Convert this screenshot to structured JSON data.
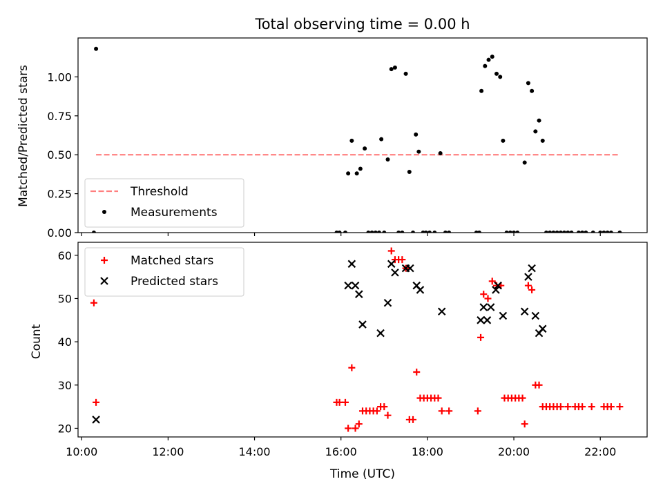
{
  "chart_data": [
    {
      "type": "scatter",
      "title": "Total observing time = 0.00 h",
      "xlabel": "",
      "ylabel": "Matched/Predicted stars",
      "xlim": [
        "09:55",
        "23:05"
      ],
      "ylim": [
        0,
        1.25
      ],
      "yticks": [
        0.0,
        0.25,
        0.5,
        0.75,
        1.0
      ],
      "ytick_labels": [
        "0.00",
        "0.25",
        "0.50",
        "0.75",
        "1.00"
      ],
      "legend_position": "lower-left",
      "grid": false,
      "series": [
        {
          "name": "Threshold",
          "kind": "line",
          "style": "dashed",
          "color": "#ff7f7f",
          "points": [
            [
              "10:20",
              0.5
            ],
            [
              "22:27",
              0.5
            ]
          ]
        },
        {
          "name": "Measurements",
          "kind": "scatter",
          "marker": "dot",
          "color": "#000000",
          "points": [
            [
              "10:17",
              0.0
            ],
            [
              "10:20",
              1.18
            ],
            [
              "15:54",
              0.0
            ],
            [
              "15:58",
              0.0
            ],
            [
              "16:06",
              0.0
            ],
            [
              "16:10",
              0.38
            ],
            [
              "16:15",
              0.59
            ],
            [
              "16:22",
              0.38
            ],
            [
              "16:27",
              0.41
            ],
            [
              "16:33",
              0.54
            ],
            [
              "16:38",
              0.0
            ],
            [
              "16:43",
              0.0
            ],
            [
              "16:48",
              0.0
            ],
            [
              "16:53",
              0.0
            ],
            [
              "16:56",
              0.6
            ],
            [
              "17:00",
              0.0
            ],
            [
              "17:05",
              0.47
            ],
            [
              "17:10",
              1.05
            ],
            [
              "17:15",
              1.06
            ],
            [
              "17:20",
              0.0
            ],
            [
              "17:25",
              0.0
            ],
            [
              "17:30",
              1.02
            ],
            [
              "17:35",
              0.39
            ],
            [
              "17:40",
              0.0
            ],
            [
              "17:44",
              0.63
            ],
            [
              "17:48",
              0.52
            ],
            [
              "17:54",
              0.0
            ],
            [
              "17:58",
              0.0
            ],
            [
              "18:03",
              0.0
            ],
            [
              "18:10",
              0.0
            ],
            [
              "18:18",
              0.51
            ],
            [
              "18:25",
              0.0
            ],
            [
              "18:30",
              0.0
            ],
            [
              "19:08",
              0.0
            ],
            [
              "19:12",
              0.0
            ],
            [
              "19:15",
              0.91
            ],
            [
              "19:20",
              1.07
            ],
            [
              "19:25",
              1.11
            ],
            [
              "19:30",
              1.13
            ],
            [
              "19:36",
              1.02
            ],
            [
              "19:41",
              1.0
            ],
            [
              "19:45",
              0.59
            ],
            [
              "19:50",
              0.0
            ],
            [
              "19:55",
              0.0
            ],
            [
              "20:00",
              0.0
            ],
            [
              "20:05",
              0.0
            ],
            [
              "20:15",
              0.45
            ],
            [
              "20:20",
              0.96
            ],
            [
              "20:25",
              0.91
            ],
            [
              "20:30",
              0.65
            ],
            [
              "20:35",
              0.72
            ],
            [
              "20:40",
              0.59
            ],
            [
              "20:45",
              0.0
            ],
            [
              "20:50",
              0.0
            ],
            [
              "20:55",
              0.0
            ],
            [
              "21:00",
              0.0
            ],
            [
              "21:05",
              0.0
            ],
            [
              "21:10",
              0.0
            ],
            [
              "21:15",
              0.0
            ],
            [
              "21:20",
              0.0
            ],
            [
              "21:30",
              0.0
            ],
            [
              "21:35",
              0.0
            ],
            [
              "21:40",
              0.0
            ],
            [
              "21:50",
              0.0
            ],
            [
              "22:00",
              0.0
            ],
            [
              "22:05",
              0.0
            ],
            [
              "22:10",
              0.0
            ],
            [
              "22:15",
              0.0
            ],
            [
              "22:27",
              0.0
            ]
          ]
        }
      ]
    },
    {
      "type": "scatter",
      "title": "",
      "xlabel": "Time (UTC)",
      "ylabel": "Count",
      "xlim": [
        "09:55",
        "23:05"
      ],
      "ylim": [
        18,
        63
      ],
      "yticks": [
        20,
        30,
        40,
        50,
        60
      ],
      "ytick_labels": [
        "20",
        "30",
        "40",
        "50",
        "60"
      ],
      "xticks": [
        "10:00",
        "12:00",
        "14:00",
        "16:00",
        "18:00",
        "20:00",
        "22:00"
      ],
      "xtick_labels": [
        "10:00",
        "12:00",
        "14:00",
        "16:00",
        "18:00",
        "20:00",
        "22:00"
      ],
      "legend_position": "upper-left",
      "grid": false,
      "series": [
        {
          "name": "Matched stars",
          "kind": "scatter",
          "marker": "plus",
          "color": "#ff0000",
          "points": [
            [
              "10:17",
              49
            ],
            [
              "10:20",
              26
            ],
            [
              "15:54",
              26
            ],
            [
              "15:58",
              26
            ],
            [
              "16:06",
              26
            ],
            [
              "16:10",
              20
            ],
            [
              "16:15",
              34
            ],
            [
              "16:20",
              20
            ],
            [
              "16:25",
              21
            ],
            [
              "16:30",
              24
            ],
            [
              "16:35",
              24
            ],
            [
              "16:40",
              24
            ],
            [
              "16:45",
              24
            ],
            [
              "16:50",
              24
            ],
            [
              "16:55",
              25
            ],
            [
              "17:00",
              25
            ],
            [
              "17:05",
              23
            ],
            [
              "17:10",
              61
            ],
            [
              "17:15",
              59
            ],
            [
              "17:20",
              59
            ],
            [
              "17:25",
              59
            ],
            [
              "17:30",
              57
            ],
            [
              "17:35",
              22
            ],
            [
              "17:40",
              22
            ],
            [
              "17:45",
              33
            ],
            [
              "17:50",
              27
            ],
            [
              "17:55",
              27
            ],
            [
              "18:00",
              27
            ],
            [
              "18:05",
              27
            ],
            [
              "18:10",
              27
            ],
            [
              "18:15",
              27
            ],
            [
              "18:20",
              24
            ],
            [
              "18:30",
              24
            ],
            [
              "19:10",
              24
            ],
            [
              "19:14",
              41
            ],
            [
              "19:18",
              51
            ],
            [
              "19:24",
              50
            ],
            [
              "19:30",
              54
            ],
            [
              "19:36",
              53
            ],
            [
              "19:42",
              53
            ],
            [
              "19:47",
              27
            ],
            [
              "19:52",
              27
            ],
            [
              "19:57",
              27
            ],
            [
              "20:02",
              27
            ],
            [
              "20:07",
              27
            ],
            [
              "20:12",
              27
            ],
            [
              "20:15",
              21
            ],
            [
              "20:20",
              53
            ],
            [
              "20:25",
              52
            ],
            [
              "20:30",
              30
            ],
            [
              "20:35",
              30
            ],
            [
              "20:40",
              25
            ],
            [
              "20:45",
              25
            ],
            [
              "20:50",
              25
            ],
            [
              "20:55",
              25
            ],
            [
              "21:00",
              25
            ],
            [
              "21:05",
              25
            ],
            [
              "21:15",
              25
            ],
            [
              "21:25",
              25
            ],
            [
              "21:30",
              25
            ],
            [
              "21:35",
              25
            ],
            [
              "21:48",
              25
            ],
            [
              "22:05",
              25
            ],
            [
              "22:10",
              25
            ],
            [
              "22:15",
              25
            ],
            [
              "22:27",
              25
            ]
          ]
        },
        {
          "name": "Predicted stars",
          "kind": "scatter",
          "marker": "x",
          "color": "#000000",
          "points": [
            [
              "10:20",
              22
            ],
            [
              "16:10",
              53
            ],
            [
              "16:15",
              58
            ],
            [
              "16:20",
              53
            ],
            [
              "16:25",
              51
            ],
            [
              "16:30",
              44
            ],
            [
              "16:55",
              42
            ],
            [
              "17:05",
              49
            ],
            [
              "17:10",
              58
            ],
            [
              "17:15",
              56
            ],
            [
              "17:30",
              57
            ],
            [
              "17:36",
              57
            ],
            [
              "17:45",
              53
            ],
            [
              "17:50",
              52
            ],
            [
              "18:20",
              47
            ],
            [
              "19:14",
              45
            ],
            [
              "19:18",
              48
            ],
            [
              "19:23",
              45
            ],
            [
              "19:28",
              48
            ],
            [
              "19:35",
              52
            ],
            [
              "19:38",
              53
            ],
            [
              "19:45",
              46
            ],
            [
              "20:15",
              47
            ],
            [
              "20:20",
              55
            ],
            [
              "20:25",
              57
            ],
            [
              "20:30",
              46
            ],
            [
              "20:35",
              42
            ],
            [
              "20:40",
              43
            ]
          ]
        }
      ]
    }
  ]
}
